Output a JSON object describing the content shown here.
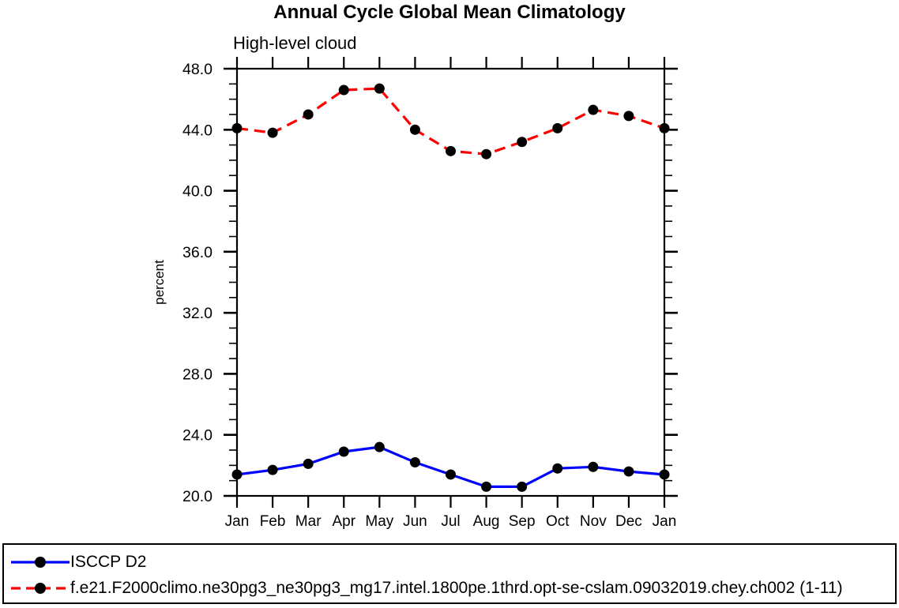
{
  "chart_data": {
    "type": "line",
    "title": "Annual Cycle Global Mean Climatology",
    "subtitle": "High-level cloud",
    "ylabel": "percent",
    "xlabel": "",
    "categories": [
      "Jan",
      "Feb",
      "Mar",
      "Apr",
      "May",
      "Jun",
      "Jul",
      "Aug",
      "Sep",
      "Oct",
      "Nov",
      "Dec",
      "Jan"
    ],
    "ylim": [
      20.0,
      48.0
    ],
    "ytick_major_step": 4.0,
    "ytick_minor_step": 1.0,
    "ytick_labels": [
      "20.0",
      "24.0",
      "28.0",
      "32.0",
      "36.0",
      "40.0",
      "44.0",
      "48.0"
    ],
    "grid": false,
    "legend_position": "bottom",
    "axis_color": "#000000",
    "marker": "filled-circle",
    "marker_color": "#000000",
    "series": [
      {
        "name": "ISCCP D2",
        "color": "#0000ff",
        "line_style": "solid",
        "values": [
          21.4,
          21.7,
          22.1,
          22.9,
          23.2,
          22.2,
          21.4,
          20.6,
          20.6,
          21.8,
          21.9,
          21.6,
          21.4
        ]
      },
      {
        "name": "f.e21.F2000climo.ne30pg3_ne30pg3_mg17.intel.1800pe.1thrd.opt-se-cslam.09032019.chey.ch002 (1-11)",
        "color": "#ff0000",
        "line_style": "dashed",
        "values": [
          44.1,
          43.8,
          45.0,
          46.6,
          46.7,
          44.0,
          42.6,
          42.4,
          43.2,
          44.1,
          45.3,
          44.9,
          44.1
        ]
      }
    ]
  }
}
